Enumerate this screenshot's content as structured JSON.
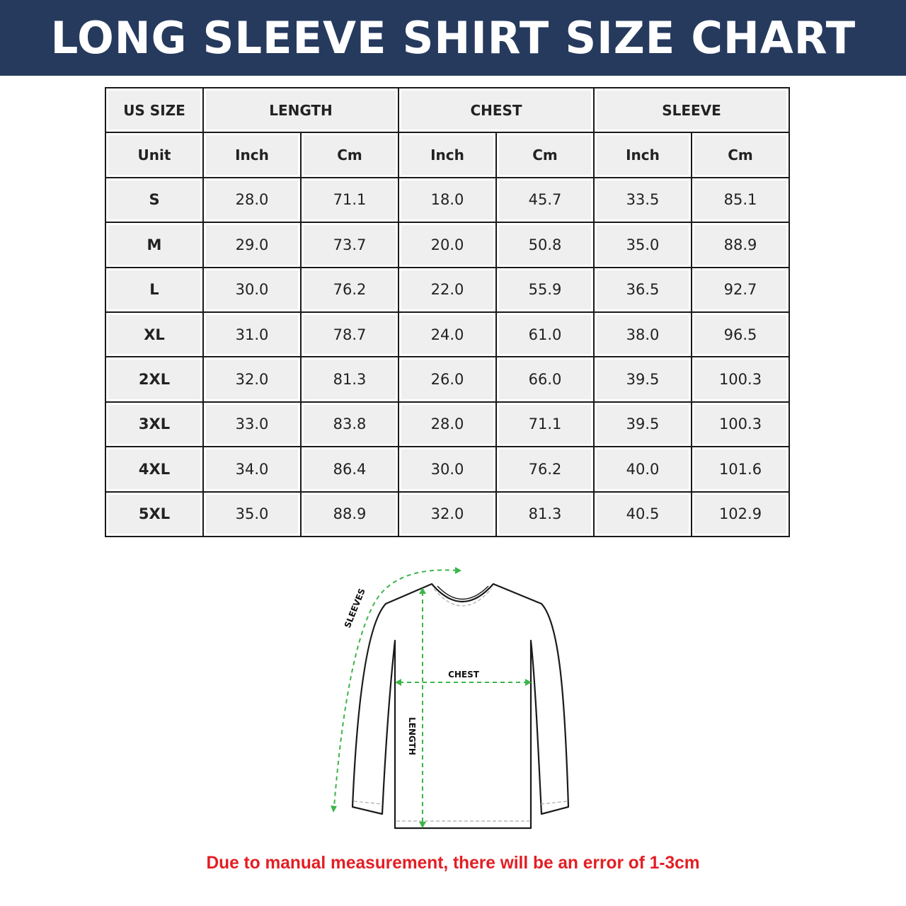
{
  "title": "LONG SLEEVE SHIRT SIZE CHART",
  "chart_data": {
    "type": "table",
    "group_headers": [
      "US SIZE",
      "LENGTH",
      "CHEST",
      "SLEEVE"
    ],
    "unit_row": [
      "Unit",
      "Inch",
      "Cm",
      "Inch",
      "Cm",
      "Inch",
      "Cm"
    ],
    "rows": [
      [
        "S",
        "28.0",
        "71.1",
        "18.0",
        "45.7",
        "33.5",
        "85.1"
      ],
      [
        "M",
        "29.0",
        "73.7",
        "20.0",
        "50.8",
        "35.0",
        "88.9"
      ],
      [
        "L",
        "30.0",
        "76.2",
        "22.0",
        "55.9",
        "36.5",
        "92.7"
      ],
      [
        "XL",
        "31.0",
        "78.7",
        "24.0",
        "61.0",
        "38.0",
        "96.5"
      ],
      [
        "2XL",
        "32.0",
        "81.3",
        "26.0",
        "66.0",
        "39.5",
        "100.3"
      ],
      [
        "3XL",
        "33.0",
        "83.8",
        "28.0",
        "71.1",
        "39.5",
        "100.3"
      ],
      [
        "4XL",
        "34.0",
        "86.4",
        "30.0",
        "76.2",
        "40.0",
        "101.6"
      ],
      [
        "5XL",
        "35.0",
        "88.9",
        "32.0",
        "81.3",
        "40.5",
        "102.9"
      ]
    ]
  },
  "diagram": {
    "labels": {
      "sleeves": "SLEEVES",
      "chest": "CHEST",
      "length": "LENGTH"
    },
    "measure_color": "#3cb54a"
  },
  "note": "Due to manual measurement, there will be an error of 1-3cm",
  "colors": {
    "banner": "#263a5e",
    "note": "#e31e24"
  }
}
